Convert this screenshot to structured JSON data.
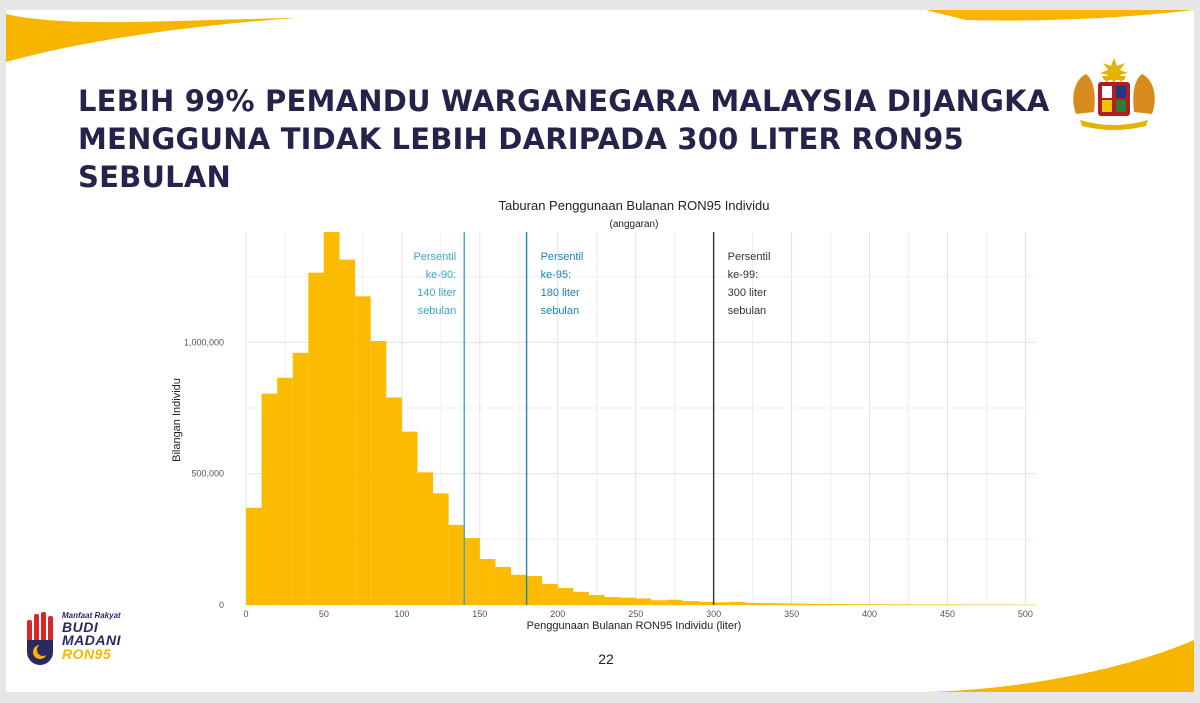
{
  "slide": {
    "title_line1": "LEBIH 99% PEMANDU WARGANEGARA MALAYSIA DIJANGKA",
    "title_line2": "MENGGUNA TIDAK LEBIH DARIPADA 300 LITER RON95 SEBULAN",
    "page_number": "22"
  },
  "logo": {
    "line1": "Manfaat Rakyat",
    "line2": "BUDI",
    "line3": "MADANI",
    "line4": "RON95"
  },
  "colors": {
    "title": "#24244a",
    "bar": "#fbbb00",
    "accent_yellow": "#f7b500",
    "p90_line": "#3aa7c9",
    "p95_line": "#1b84b8",
    "p99_line": "#333333"
  },
  "chart_data": {
    "type": "bar",
    "title": "Taburan Penggunaan Bulanan RON95 Individu",
    "subtitle": "(anggaran)",
    "xlabel": "Penggunaan Bulanan RON95 Individu (liter)",
    "ylabel": "Bilangan Individu",
    "bin_width": 10,
    "xlim": [
      0,
      510
    ],
    "ylim": [
      0,
      1420000
    ],
    "x_ticks": [
      0,
      50,
      100,
      150,
      200,
      250,
      300,
      350,
      400,
      450,
      500
    ],
    "y_ticks": [
      0,
      500000,
      1000000
    ],
    "y_tick_labels": [
      "0",
      "500,000",
      "1,000,000"
    ],
    "grid": true,
    "bins_start": [
      0,
      10,
      20,
      30,
      40,
      50,
      60,
      70,
      80,
      90,
      100,
      110,
      120,
      130,
      140,
      150,
      160,
      170,
      180,
      190,
      200,
      210,
      220,
      230,
      240,
      250,
      260,
      270,
      280,
      290,
      300,
      310,
      320,
      330,
      340,
      350,
      360,
      370,
      380,
      390,
      400,
      410,
      420,
      430,
      440,
      450,
      460,
      470,
      480,
      490,
      500
    ],
    "values": [
      370000,
      805000,
      865000,
      960000,
      1265000,
      1420000,
      1315000,
      1175000,
      1005000,
      790000,
      660000,
      505000,
      425000,
      305000,
      255000,
      175000,
      145000,
      115000,
      110000,
      80000,
      65000,
      50000,
      38000,
      30000,
      28000,
      25000,
      18000,
      20000,
      15000,
      12000,
      10000,
      12000,
      8000,
      7000,
      6000,
      5000,
      4500,
      4000,
      3500,
      3000,
      3000,
      2500,
      2500,
      2000,
      2000,
      2000,
      1500,
      1500,
      1500,
      1000,
      1000
    ],
    "annotations": [
      {
        "x": 140,
        "lines": [
          "Persentil",
          "ke-90:",
          "140 liter",
          "sebulan"
        ],
        "color": "#3aa7c9",
        "align": "right"
      },
      {
        "x": 180,
        "lines": [
          "Persentil",
          "ke-95:",
          "180 liter",
          "sebulan"
        ],
        "color": "#1b84b8",
        "align": "left"
      },
      {
        "x": 300,
        "lines": [
          "Persentil",
          "ke-99:",
          "300 liter",
          "sebulan"
        ],
        "color": "#333333",
        "align": "left"
      }
    ]
  }
}
